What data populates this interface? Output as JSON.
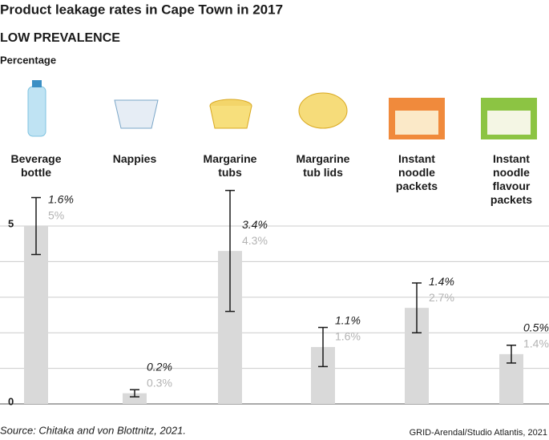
{
  "chart_data": {
    "type": "bar",
    "title": "Product leakage rates in Cape Town in 2017",
    "subtitle": "LOW PREVALENCE",
    "y_label": "Percentage",
    "categories": [
      "Beverage\nbottle",
      "Nappies",
      "Margarine\ntubs",
      "Margarine\ntub lids",
      "Instant\nnoodle\npackets",
      "Instant\nnoodle\nflavour\npackets"
    ],
    "values": [
      5,
      0.3,
      4.3,
      1.6,
      2.7,
      1.4
    ],
    "value_labels": [
      "5%",
      "0.3%",
      "4.3%",
      "1.6%",
      "2.7%",
      "1.4%"
    ],
    "errors": [
      1.6,
      0.2,
      3.4,
      1.1,
      1.4,
      0.5
    ],
    "error_labels": [
      "1.6%",
      "0.2%",
      "3.4%",
      "1.1%",
      "1.4%",
      "0.5%"
    ],
    "color": "#d9d9d9",
    "ylim": [
      0,
      6.6
    ],
    "yticks": [
      0,
      5
    ],
    "gridlines": [
      0,
      1,
      2,
      3,
      4,
      5
    ],
    "grid": true,
    "source": "Source: Chitaka and von Blottnitz, 2021.",
    "credit": "GRID-Arendal/Studio Atlantis, 2021"
  }
}
